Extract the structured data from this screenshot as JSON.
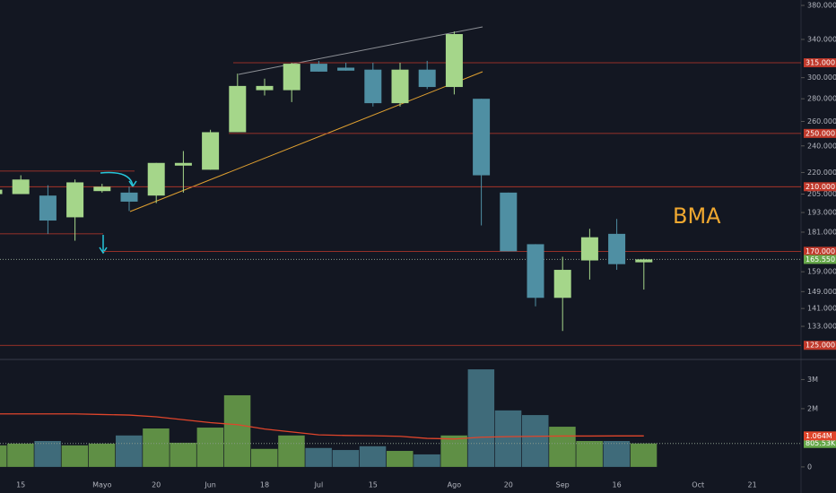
{
  "chart_data": [
    {
      "type": "candlestick",
      "categories": [
        null,
        "15",
        null,
        null,
        "Mayo",
        null,
        "20",
        null,
        "Jun",
        null,
        "18",
        null,
        "Jul",
        null,
        "15",
        null,
        null,
        "Ago",
        null,
        "20",
        null,
        "Sep",
        null,
        "16",
        null,
        null,
        "Oct",
        null,
        "21",
        null
      ],
      "open": [
        205,
        205,
        204,
        190,
        207,
        206,
        204,
        225,
        222,
        251,
        288,
        288,
        314,
        310,
        308,
        276,
        308,
        291,
        280,
        206,
        174,
        146,
        165,
        180,
        164,
        null,
        null,
        null,
        null,
        null
      ],
      "high": [
        218,
        218,
        211,
        215,
        212,
        210,
        227,
        236,
        253,
        304,
        299,
        315,
        317,
        315,
        315,
        315,
        317,
        349,
        280,
        206,
        174,
        167,
        183,
        189,
        166,
        null,
        null,
        null,
        null,
        null
      ],
      "low": [
        205,
        205,
        180,
        176,
        206,
        194,
        199,
        206,
        222,
        251,
        283,
        277,
        306,
        307,
        273,
        273,
        289,
        284,
        185,
        170,
        142,
        131,
        155,
        160,
        150,
        null,
        null,
        null,
        null,
        null
      ],
      "close": [
        208,
        215,
        188,
        213,
        210,
        200,
        227,
        227,
        251,
        292,
        292,
        314,
        306,
        307,
        276,
        308,
        291,
        346,
        218,
        170,
        146,
        160,
        178,
        163,
        165.55,
        null,
        null,
        null,
        null,
        null
      ],
      "up_color": "#a5d68a",
      "down_color": "#4f8fa3",
      "log_scale": true,
      "ylim": [
        119.7,
        386.8
      ],
      "yticks": [
        {
          "value": 380,
          "label": "380.000"
        },
        {
          "value": 340,
          "label": "340.000"
        },
        {
          "value": 300,
          "label": "300.000"
        },
        {
          "value": 280,
          "label": "280.000"
        },
        {
          "value": 260,
          "label": "260.000"
        },
        {
          "value": 240,
          "label": "240.000"
        },
        {
          "value": 220,
          "label": "220.000"
        },
        {
          "value": 205,
          "label": "205.000"
        },
        {
          "value": 193,
          "label": "193.000"
        },
        {
          "value": 181,
          "label": "181.000"
        },
        {
          "value": 159,
          "label": "159.000"
        },
        {
          "value": 149,
          "label": "149.000"
        },
        {
          "value": 141,
          "label": "141.000"
        },
        {
          "value": 133,
          "label": "133.000"
        }
      ],
      "levels": [
        {
          "value": 315,
          "label": "315.000"
        },
        {
          "value": 250,
          "label": "250.000"
        },
        {
          "value": 210,
          "label": "210.000"
        },
        {
          "value": 170,
          "label": "170.000"
        },
        {
          "value": 125,
          "label": "125.000"
        }
      ],
      "unlabeled_levels": [
        221,
        180
      ],
      "level_color": "#c0392b",
      "last_price": {
        "value": 165.55,
        "label": "165.550"
      },
      "annotation": "BMA"
    },
    {
      "type": "volume",
      "values": [
        740000,
        800000,
        890000,
        740000,
        800000,
        1080000,
        1320000,
        830000,
        1350000,
        2460000,
        620000,
        1080000,
        650000,
        580000,
        710000,
        550000,
        430000,
        1080000,
        3350000,
        1940000,
        1780000,
        1380000,
        890000,
        890000,
        805530,
        null,
        null,
        null,
        null,
        null
      ],
      "ma": [
        1820000,
        1820000,
        1820000,
        1820000,
        1800000,
        1780000,
        1720000,
        1620000,
        1520000,
        1450000,
        1300000,
        1200000,
        1100000,
        1080000,
        1070000,
        1050000,
        980000,
        960000,
        1020000,
        1040000,
        1050000,
        1060000,
        1060000,
        1064000,
        1064000,
        null,
        null,
        null,
        null,
        null
      ],
      "up_color": "#5f8f45",
      "down_color": "#3f6b7a",
      "ma_color": "#e0452b",
      "ylim": [
        -280000,
        3690000
      ],
      "yticks": [
        {
          "value": 3000000,
          "label": "3M"
        },
        {
          "value": 2000000,
          "label": "2M"
        },
        0
      ],
      "last_value_label": "805.53K",
      "last_ma_label": "1.064M"
    }
  ]
}
